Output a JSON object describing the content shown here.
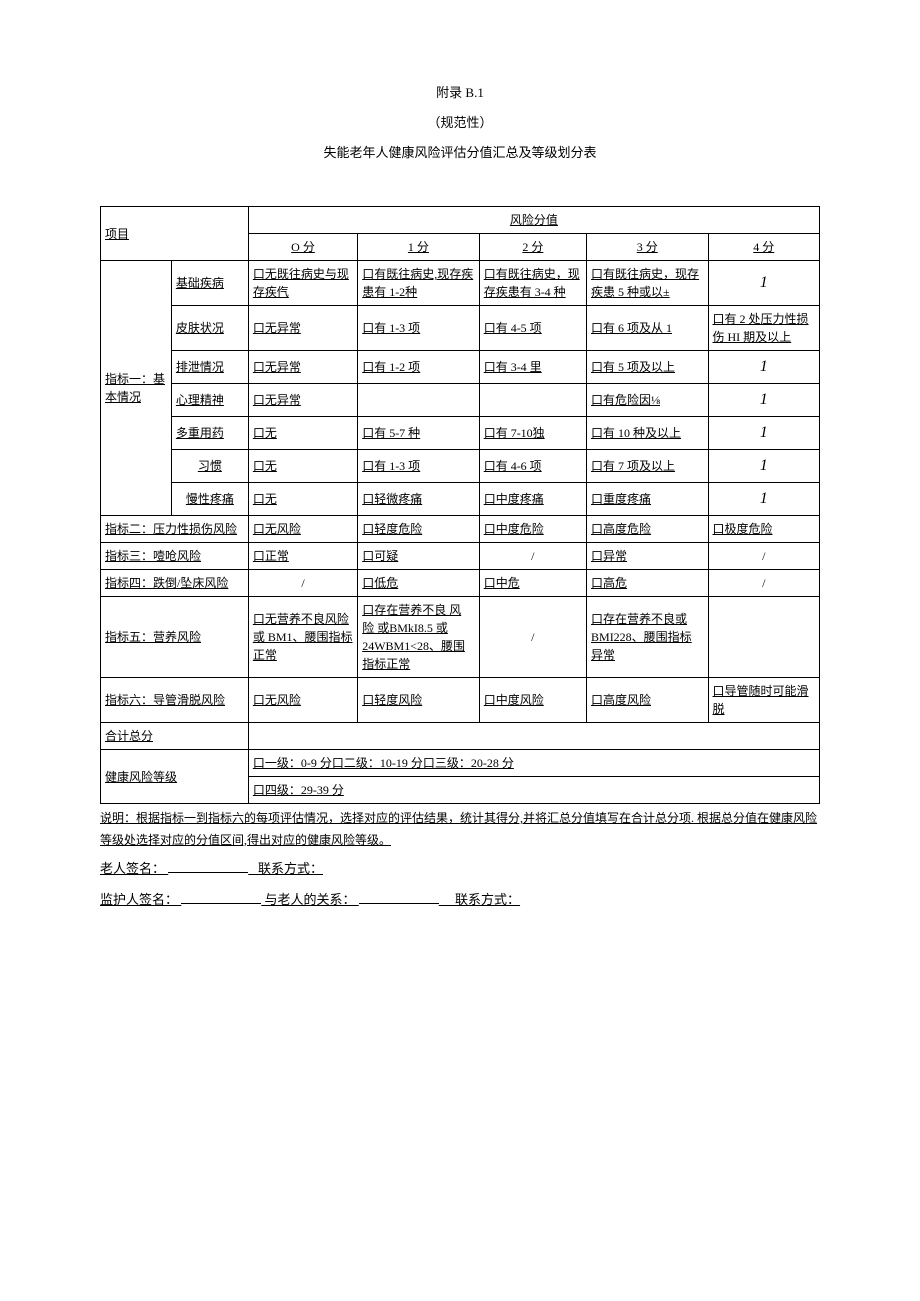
{
  "header": {
    "appendix": "附录 B.1",
    "normative": "（规范性）",
    "title": "失能老年人健康风险评估分值汇总及等级划分表"
  },
  "table": {
    "project_label": "项目",
    "risk_score_label": "风险分值",
    "score_headers": [
      "O 分",
      "1 分",
      "2 分",
      "3 分",
      "4 分"
    ],
    "indicator1": {
      "label": "指标一：基本情况",
      "rows": [
        {
          "name": "基础疾病",
          "c0": "口无既往病史与现存疾㐹",
          "c1": "口有既往病史,现存疾患有 1-2种",
          "c2": "口有既往病史，现存疾患有 3-4 种",
          "c3": "口有既往病史，现存疾患 5 种或以±",
          "c4_italic": "1"
        },
        {
          "name": "皮肤状况",
          "c0": "口无异常",
          "c1": "口有 1-3 项",
          "c2": "口有 4-5 项",
          "c3": "口有 6 项及从 1",
          "c4": "口有 2 处压力性损伤 HI 期及以上"
        },
        {
          "name": "排泄情况",
          "c0": "口无异常",
          "c1": "口有 1-2 项",
          "c2": "口有 3-4 里",
          "c3": "口有 5 项及以上",
          "c4_italic": "1"
        },
        {
          "name": "心理精神",
          "c0": "口无异常",
          "c1": "",
          "c2": "",
          "c3": "口有危险因⅛",
          "c4_italic": "1"
        },
        {
          "name": "多重用药",
          "c0": "口无",
          "c1": "口有 5-7 种",
          "c2": "口有 7-10独",
          "c3": "口有 10 种及以上",
          "c4_italic": "1"
        },
        {
          "name": "习惯",
          "c0": "口无",
          "c1": "口有 1-3 项",
          "c2": "口有 4-6 项",
          "c3": "口有 7 项及以上",
          "c4_italic": "1"
        },
        {
          "name": "慢性疼痛",
          "c0": "口无",
          "c1": "口轻微疼痛",
          "c2": "口中度疼痛",
          "c3": "口重度疼痛",
          "c4_italic": "1"
        }
      ]
    },
    "indicator2": {
      "label": "指标二：压力性损伤风险",
      "c0": "口无风险",
      "c1": "口轻度危险",
      "c2": "口中度危险",
      "c3": "口高度危险",
      "c4": "口极度危险"
    },
    "indicator3": {
      "label": "指标三：噎呛风险",
      "c0": "口正常",
      "c1": "口可疑",
      "c2": "/",
      "c3": "口异常",
      "c4": "/"
    },
    "indicator4": {
      "label": "指标四：跌倒/坠床风险",
      "c0": "/",
      "c1": "口低危",
      "c2": "口中危",
      "c3": "口高危",
      "c4": "/"
    },
    "indicator5": {
      "label": "指标五：营养风险",
      "c0": "口无营养不良风险或 BM1、腰围指标正常",
      "c1": "口存在营养不良 风 险 或BMkI8.5 或 24WBM1<28、腰围指标正常",
      "c2": "/",
      "c3": "口存在营养不良或 BMI228、腰围指标异常",
      "c4": ""
    },
    "indicator6": {
      "label": "指标六：导管滑脱风险",
      "c0": "口无风险",
      "c1": "口轻度风险",
      "c2": "口中度风险",
      "c3": "口高度风险",
      "c4": "口导管随时可能滑脱"
    },
    "total_label": "合计总分",
    "level_label": "健康风险等级",
    "level_row1": "口一级：0-9 分口二级：10-19 分口三级：20-28 分",
    "level_row2": "口四级：29-39 分"
  },
  "note": "说明：根据指标一到指标六的每项评估情况，选择对应的评估结果，统计其得分,并将汇总分值填写在合计总分项. 根据总分值在健康风险等级处选择对应的分值区间,得出对应的健康风险等级。",
  "signatures": {
    "elder_name": "老人签名：",
    "contact1": "联系方式：",
    "guardian_name": "监护人签名：",
    "relation": "与老人的关系：",
    "contact2": "联系方式："
  }
}
